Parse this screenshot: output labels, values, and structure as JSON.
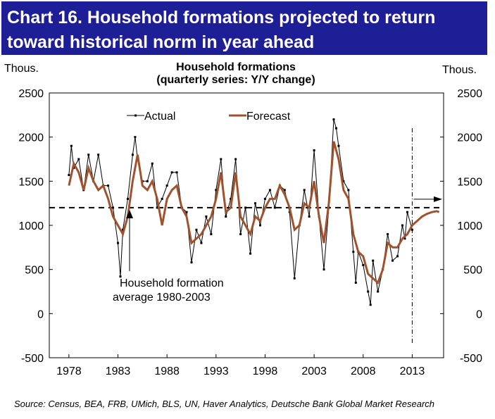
{
  "chart_data": {
    "type": "line",
    "title": [
      "Chart 16. Household formations projected to return",
      "toward historical norm in year ahead"
    ],
    "subtitle": [
      "Household formations",
      "(quarterly series: Y/Y change)"
    ],
    "ylabel": "Thous.",
    "y2label": "Thous.",
    "source": "Source: Census, BEA, FRB, UMich, BLS, UN, Haver Analytics, Deutsche Bank Global Market Research",
    "annotation": [
      "Household formation",
      "average 1980-2003"
    ],
    "hline": 1200,
    "vline": 2013,
    "xlim": [
      1976,
      2016.2
    ],
    "xticks": [
      1978,
      1983,
      1988,
      1993,
      1998,
      2003,
      2008,
      2013
    ],
    "ylim": [
      -500,
      2500
    ],
    "yticks": [
      -500,
      0,
      500,
      1000,
      1500,
      2000,
      2500
    ],
    "y2lim": [
      -500,
      2500
    ],
    "y2ticks": [
      -500,
      0,
      500,
      1000,
      1500,
      2000,
      2500
    ],
    "legend": "top-left",
    "series": [
      {
        "name": "Actual",
        "color": "#000000",
        "markers": true,
        "x": [
          1978,
          1978.25,
          1978.5,
          1979,
          1979.5,
          1980,
          1980.5,
          1981,
          1981.5,
          1982,
          1982.5,
          1983,
          1983.25,
          1983.5,
          1984,
          1984.5,
          1984.75,
          1985,
          1985.5,
          1986,
          1986.5,
          1987,
          1987.5,
          1988,
          1988.5,
          1989,
          1989.5,
          1990,
          1990.5,
          1991,
          1991.5,
          1992,
          1992.5,
          1993,
          1993.5,
          1994,
          1994.5,
          1995,
          1995.5,
          1996,
          1996.5,
          1997,
          1997.5,
          1998,
          1998.5,
          1999,
          1999.5,
          2000,
          2000.5,
          2001,
          2001.5,
          2002,
          2002.5,
          2003,
          2003.5,
          2004,
          2004.5,
          2005,
          2005.25,
          2005.5,
          2006,
          2006.5,
          2007,
          2007.25,
          2007.5,
          2008,
          2008.5,
          2008.75,
          2009,
          2009.5,
          2010,
          2010.5,
          2011,
          2011.5,
          2012,
          2012.25,
          2012.5,
          2013
        ],
        "values": [
          1570,
          1900,
          1650,
          1750,
          1400,
          1800,
          1500,
          1800,
          1450,
          1450,
          1200,
          800,
          420,
          950,
          1300,
          1800,
          2000,
          1750,
          1500,
          1500,
          1700,
          1200,
          1300,
          1450,
          1600,
          1600,
          1200,
          1150,
          580,
          950,
          800,
          1100,
          900,
          1400,
          1750,
          1100,
          1300,
          1750,
          900,
          1200,
          680,
          1250,
          1000,
          1300,
          1400,
          1200,
          1450,
          1400,
          1150,
          400,
          1000,
          1400,
          1100,
          1850,
          1100,
          500,
          1200,
          2200,
          2100,
          1900,
          1500,
          1400,
          700,
          350,
          700,
          550,
          250,
          100,
          600,
          250,
          500,
          900,
          600,
          650,
          1000,
          850,
          1150,
          950
        ]
      },
      {
        "name": "Forecast",
        "color": "#a0522d",
        "markers": false,
        "x": [
          1978,
          1978.5,
          1979,
          1979.5,
          1980,
          1980.5,
          1981,
          1981.5,
          1982,
          1982.5,
          1983,
          1983.5,
          1984,
          1984.5,
          1985,
          1985.5,
          1986,
          1986.5,
          1987,
          1987.5,
          1988,
          1988.5,
          1989,
          1989.5,
          1990,
          1990.5,
          1991,
          1991.5,
          1992,
          1992.5,
          1993,
          1993.5,
          1994,
          1994.5,
          1995,
          1995.5,
          1996,
          1996.5,
          1997,
          1997.5,
          1998,
          1998.5,
          1999,
          1999.5,
          2000,
          2000.5,
          2001,
          2001.5,
          2002,
          2002.5,
          2003,
          2003.5,
          2004,
          2004.5,
          2005,
          2005.5,
          2006,
          2006.5,
          2007,
          2007.5,
          2008,
          2008.5,
          2009,
          2009.5,
          2010,
          2010.5,
          2011,
          2011.5,
          2012,
          2012.5,
          2013,
          2013.5,
          2014,
          2014.5,
          2015,
          2015.5,
          2015.75
        ],
        "values": [
          1450,
          1700,
          1600,
          1400,
          1650,
          1500,
          1400,
          1450,
          1300,
          1100,
          1000,
          900,
          1100,
          1500,
          1800,
          1450,
          1400,
          1500,
          1300,
          1000,
          1300,
          1400,
          1450,
          1200,
          1100,
          800,
          850,
          900,
          1000,
          1100,
          1300,
          1600,
          1150,
          1200,
          1600,
          1100,
          1000,
          900,
          1100,
          1050,
          1200,
          1300,
          1300,
          1450,
          1350,
          1200,
          950,
          1000,
          1250,
          1200,
          1500,
          1100,
          800,
          1250,
          1950,
          1750,
          1400,
          1300,
          900,
          700,
          650,
          450,
          400,
          350,
          500,
          800,
          750,
          750,
          850,
          900,
          1000,
          1050,
          1100,
          1130,
          1150,
          1160,
          1150
        ]
      }
    ]
  }
}
